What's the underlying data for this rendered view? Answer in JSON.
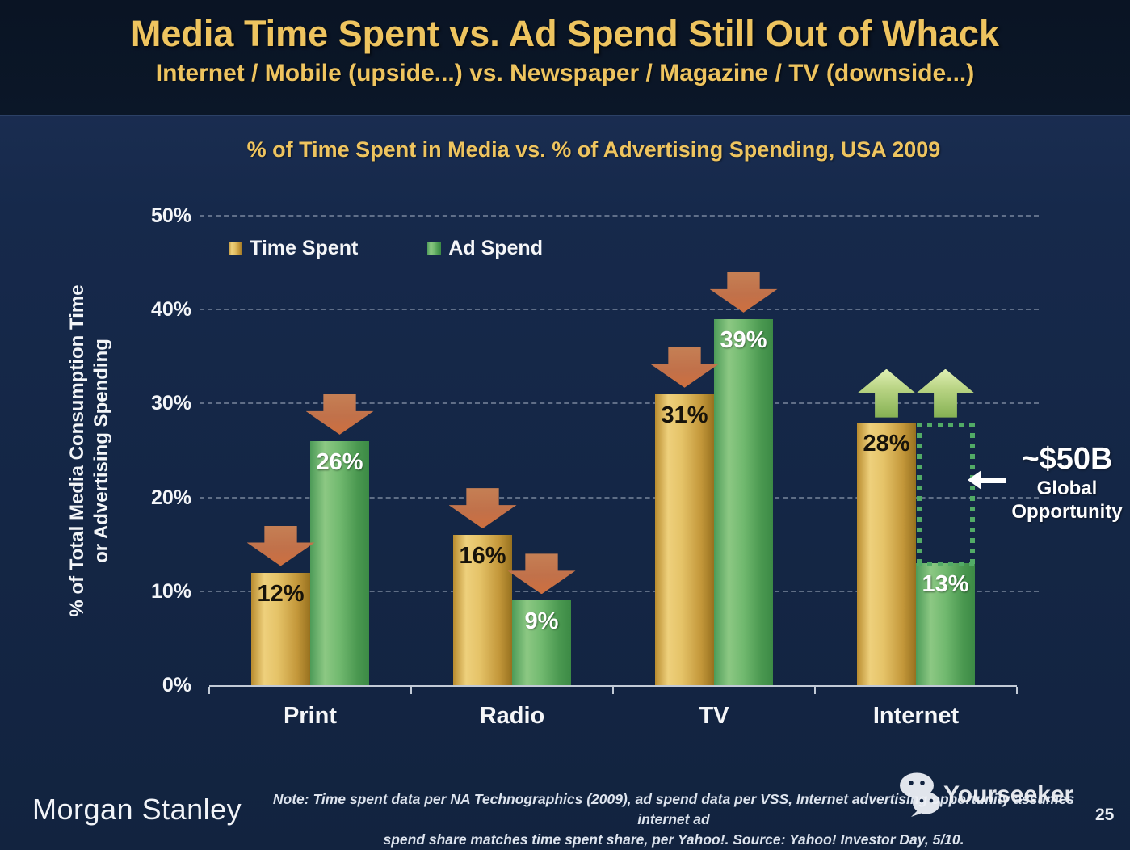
{
  "header": {
    "title": "Media Time Spent vs. Ad Spend Still Out of Whack",
    "subtitle": "Internet / Mobile (upside...) vs. Newspaper / Magazine / TV (downside...)"
  },
  "chart_data": {
    "type": "bar",
    "title": "% of Time Spent in Media vs. % of Advertising Spending, USA 2009",
    "categories": [
      "Print",
      "Radio",
      "TV",
      "Internet"
    ],
    "series": [
      {
        "name": "Time Spent",
        "color": "gold",
        "values": [
          12,
          16,
          31,
          28
        ],
        "arrows": [
          "down",
          "down",
          "down",
          "up"
        ]
      },
      {
        "name": "Ad Spend",
        "color": "green",
        "values": [
          26,
          9,
          39,
          13
        ],
        "arrows": [
          "down",
          "down",
          "down",
          "up"
        ]
      }
    ],
    "ylabel_line1": "% of Total Media Consumption Time",
    "ylabel_line2": "or Advertising Spending",
    "ylim": [
      0,
      50
    ],
    "yticks": [
      0,
      10,
      20,
      30,
      40,
      50
    ],
    "ytick_suffix": "%",
    "grid": "horizontal-dashed",
    "legend_position": "top-left-inside",
    "annotation": {
      "value": "~$50B",
      "label_line1": "Global",
      "label_line2": "Opportunity",
      "arrow": "left",
      "box": {
        "category_index": 3,
        "from_pct": 13,
        "to_pct": 28
      }
    }
  },
  "footer": {
    "brand": "Morgan Stanley",
    "note_line1": "Note: Time spent data per NA Technographics (2009), ad spend data per VSS, Internet advertising opportunity assumes internet ad",
    "note_line2": "spend share matches time spent share, per Yahoo!. Source: Yahoo! Investor Day, 5/10.",
    "watermark": "Yourseeker",
    "page_number": "25"
  },
  "colors": {
    "background": "#15284a",
    "header_background": "#0b1627",
    "accent_gold_text": "#eec45f",
    "bar_gold": "#d9a83f",
    "bar_green": "#55a45c",
    "arrow_down": "#c8744a",
    "arrow_up": "#a9cc74",
    "dotted_box_green": "#52ab66",
    "axis_white": "#f3f5f8"
  }
}
